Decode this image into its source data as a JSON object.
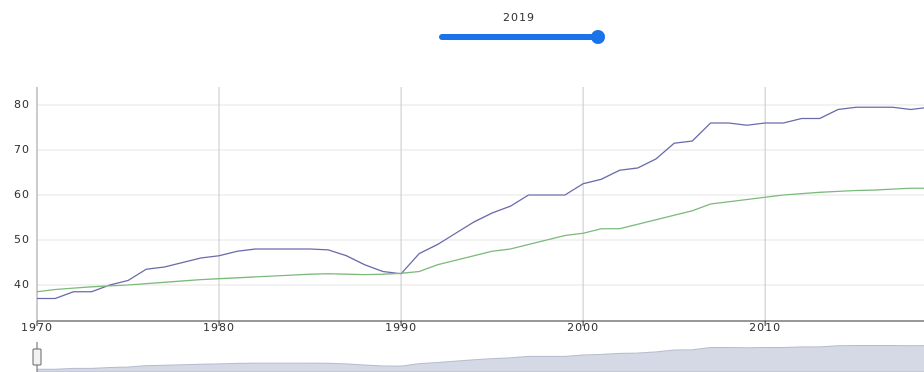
{
  "chart_data": {
    "type": "line",
    "slider_value": 2019,
    "x": [
      1970,
      1971,
      1972,
      1973,
      1974,
      1975,
      1976,
      1977,
      1978,
      1979,
      1980,
      1981,
      1982,
      1983,
      1984,
      1985,
      1986,
      1987,
      1988,
      1989,
      1990,
      1991,
      1992,
      1993,
      1994,
      1995,
      1996,
      1997,
      1998,
      1999,
      2000,
      2001,
      2002,
      2003,
      2004,
      2005,
      2006,
      2007,
      2008,
      2009,
      2010,
      2011,
      2012,
      2013,
      2014,
      2015,
      2016,
      2017,
      2018,
      2019
    ],
    "series": [
      {
        "color": "#6b6bab",
        "values": [
          37,
          37,
          38.5,
          38.5,
          40,
          41,
          43.5,
          44,
          45,
          46,
          46.5,
          47.5,
          48,
          48,
          48,
          48,
          47.8,
          46.5,
          44.5,
          43,
          42.5,
          47,
          49,
          51.5,
          54,
          56,
          57.5,
          60,
          60,
          60,
          62.5,
          63.5,
          65.5,
          66,
          68,
          71.5,
          72,
          76,
          76,
          75.5,
          76,
          76,
          77,
          77,
          79,
          79.5,
          79.5,
          79.5,
          79,
          79.5
        ]
      },
      {
        "color": "#7cba7c",
        "values": [
          38.5,
          39,
          39.3,
          39.6,
          39.8,
          40,
          40.3,
          40.6,
          40.9,
          41.2,
          41.4,
          41.6,
          41.8,
          42,
          42.2,
          42.4,
          42.5,
          42.4,
          42.3,
          42.4,
          42.6,
          43,
          44.5,
          45.5,
          46.5,
          47.5,
          48,
          49,
          50,
          51,
          51.5,
          52.5,
          52.5,
          53.5,
          54.5,
          55.5,
          56.5,
          58,
          58.5,
          59,
          59.5,
          60,
          60.3,
          60.6,
          60.8,
          61,
          61.1,
          61.3,
          61.5,
          61.5
        ]
      }
    ],
    "xlim": [
      1970,
      2019
    ],
    "xticks": [
      1970,
      1980,
      1990,
      2000,
      2010
    ],
    "ylim": [
      32,
      84
    ],
    "yticks": [
      40,
      50,
      60,
      70,
      80
    ],
    "grid": true
  }
}
